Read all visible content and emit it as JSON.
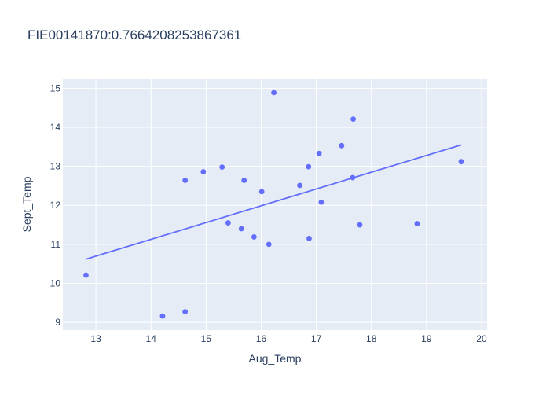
{
  "chart_data": {
    "type": "scatter",
    "title": "FIE00141870:0.7664208253867361",
    "xlabel": "Aug_Temp",
    "ylabel": "Sept_Temp",
    "xlim": [
      12.4,
      20.1
    ],
    "ylim": [
      8.8,
      15.25
    ],
    "xticks": [
      13,
      14,
      15,
      16,
      17,
      18,
      19,
      20
    ],
    "yticks": [
      9,
      10,
      11,
      12,
      13,
      14,
      15
    ],
    "grid": true,
    "colors": {
      "marker": "#636efa",
      "plot_bg": "#e5ecf6",
      "grid": "#ffffff",
      "text": "#2a3f5f"
    },
    "points": [
      {
        "x": 12.82,
        "y": 10.21
      },
      {
        "x": 14.21,
        "y": 9.16
      },
      {
        "x": 14.62,
        "y": 9.27
      },
      {
        "x": 14.62,
        "y": 12.64
      },
      {
        "x": 14.95,
        "y": 12.86
      },
      {
        "x": 15.29,
        "y": 12.98
      },
      {
        "x": 15.4,
        "y": 11.55
      },
      {
        "x": 15.64,
        "y": 11.4
      },
      {
        "x": 15.69,
        "y": 12.64
      },
      {
        "x": 15.87,
        "y": 11.19
      },
      {
        "x": 16.01,
        "y": 12.35
      },
      {
        "x": 16.14,
        "y": 11.0
      },
      {
        "x": 16.23,
        "y": 14.89
      },
      {
        "x": 16.7,
        "y": 12.51
      },
      {
        "x": 16.86,
        "y": 12.99
      },
      {
        "x": 16.87,
        "y": 11.15
      },
      {
        "x": 17.05,
        "y": 13.33
      },
      {
        "x": 17.09,
        "y": 12.08
      },
      {
        "x": 17.46,
        "y": 13.53
      },
      {
        "x": 17.66,
        "y": 12.71
      },
      {
        "x": 17.67,
        "y": 14.21
      },
      {
        "x": 17.79,
        "y": 11.5
      },
      {
        "x": 18.83,
        "y": 11.53
      },
      {
        "x": 19.63,
        "y": 13.12
      }
    ],
    "trendline": [
      {
        "x": 12.82,
        "y": 10.62
      },
      {
        "x": 19.63,
        "y": 13.55
      }
    ]
  }
}
